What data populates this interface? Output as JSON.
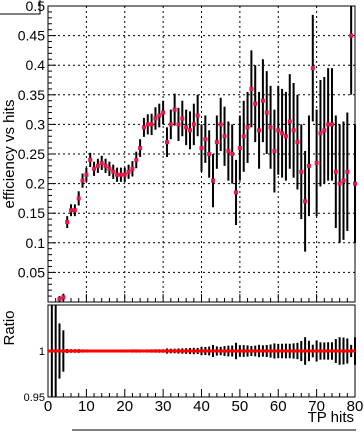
{
  "chart_data": [
    {
      "type": "scatter",
      "title": "",
      "xlabel": "",
      "ylabel": "efficiency vs hits",
      "xlim": [
        0,
        80
      ],
      "ylim": [
        0,
        0.5
      ],
      "grid": true,
      "yticks": [
        "0.05",
        "0.1",
        "0.15",
        "0.2",
        "0.25",
        "0.3",
        "0.35",
        "0.4",
        "0.45",
        "0.5"
      ],
      "series": [
        {
          "marker_color": "#e8174d",
          "x": [
            3,
            4,
            5,
            6,
            7,
            8,
            9,
            10,
            11,
            12,
            13,
            14,
            15,
            16,
            17,
            18,
            19,
            20,
            21,
            22,
            23,
            24,
            25,
            26,
            27,
            28,
            29,
            30,
            31,
            32,
            33,
            34,
            35,
            36,
            37,
            38,
            39,
            40,
            41,
            42,
            43,
            44,
            45,
            46,
            47,
            48,
            49,
            50,
            51,
            52,
            53,
            54,
            55,
            56,
            57,
            58,
            59,
            60,
            61,
            62,
            63,
            64,
            65,
            66,
            67,
            68,
            69,
            70,
            71,
            72,
            73,
            74,
            75,
            76,
            77,
            78,
            79,
            80
          ],
          "y": [
            0.005,
            0.008,
            0.135,
            0.155,
            0.155,
            0.175,
            0.205,
            0.215,
            0.24,
            0.225,
            0.23,
            0.235,
            0.23,
            0.225,
            0.22,
            0.215,
            0.215,
            0.215,
            0.22,
            0.225,
            0.24,
            0.26,
            0.295,
            0.3,
            0.3,
            0.31,
            0.315,
            0.32,
            0.27,
            0.3,
            0.325,
            0.3,
            0.31,
            0.295,
            0.29,
            0.3,
            0.315,
            0.26,
            0.275,
            0.25,
            0.205,
            0.27,
            0.3,
            0.28,
            0.255,
            0.25,
            0.185,
            0.26,
            0.28,
            0.295,
            0.36,
            0.335,
            0.29,
            0.34,
            0.32,
            0.295,
            0.255,
            0.29,
            0.285,
            0.28,
            0.305,
            0.29,
            0.27,
            0.22,
            0.17,
            0.23,
            0.395,
            0.235,
            0.285,
            0.29,
            0.3,
            0.3,
            0.22,
            0.2,
            0.205,
            0.22,
            0.45,
            0.2
          ],
          "yerr": [
            0.005,
            0.006,
            0.01,
            0.01,
            0.01,
            0.012,
            0.012,
            0.012,
            0.012,
            0.012,
            0.012,
            0.012,
            0.012,
            0.012,
            0.012,
            0.012,
            0.012,
            0.012,
            0.012,
            0.013,
            0.014,
            0.015,
            0.016,
            0.017,
            0.018,
            0.019,
            0.02,
            0.02,
            0.025,
            0.025,
            0.027,
            0.028,
            0.03,
            0.03,
            0.032,
            0.035,
            0.035,
            0.04,
            0.04,
            0.04,
            0.045,
            0.045,
            0.045,
            0.05,
            0.05,
            0.05,
            0.055,
            0.055,
            0.06,
            0.06,
            0.065,
            0.065,
            0.065,
            0.07,
            0.07,
            0.07,
            0.07,
            0.075,
            0.075,
            0.075,
            0.08,
            0.08,
            0.08,
            0.08,
            0.085,
            0.085,
            0.09,
            0.09,
            0.09,
            0.09,
            0.095,
            0.095,
            0.095,
            0.1,
            0.1,
            0.1,
            0.1,
            0.1
          ]
        }
      ]
    },
    {
      "type": "scatter",
      "title": "",
      "xlabel": "TP hits",
      "ylabel": "Ratio",
      "xlim": [
        0,
        80
      ],
      "ylim": [
        0.95,
        1.05
      ],
      "yticks": [
        "0.95",
        "1"
      ],
      "xticks": [
        "0",
        "10",
        "20",
        "30",
        "40",
        "50",
        "60",
        "70",
        "80"
      ],
      "ratio_value": 1.0,
      "line_color": "#ff0000",
      "band_color": "#000000"
    }
  ]
}
